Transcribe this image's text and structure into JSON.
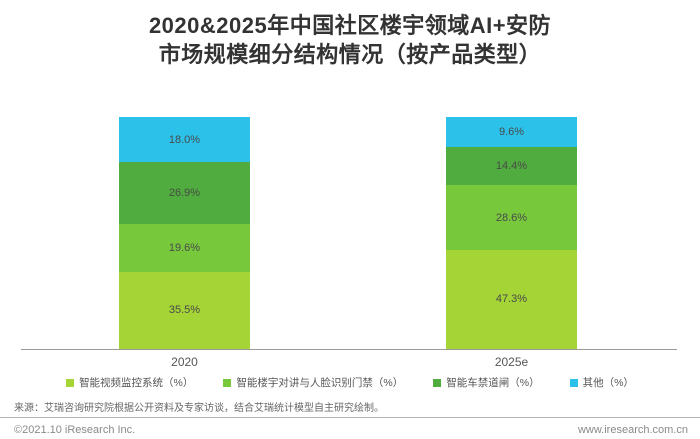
{
  "title": {
    "line1": "2020&2025年中国社区楼宇领域AI+安防",
    "line2": "市场规模细分结构情况（按产品类型）"
  },
  "chart_data": {
    "type": "bar",
    "stacked": true,
    "orientation": "vertical",
    "categories": [
      "2020",
      "2025e"
    ],
    "series": [
      {
        "name": "智能视频监控系统（%）",
        "color": "#A4D436",
        "values": [
          35.5,
          47.3
        ]
      },
      {
        "name": "智能楼宇对讲与人脸识别门禁（%）",
        "color": "#78C83C",
        "values": [
          19.6,
          28.6
        ]
      },
      {
        "name": "智能车禁道闸（%）",
        "color": "#50AC3E",
        "values": [
          26.9,
          14.4
        ]
      },
      {
        "name": "其他（%）",
        "color": "#2BC1E9",
        "values": [
          18.0,
          9.6
        ]
      }
    ],
    "data_labels": {
      "2020": [
        "35.5%",
        "19.6%",
        "26.9%",
        "18.0%"
      ],
      "2025e": [
        "47.3%",
        "28.6%",
        "14.4%",
        "9.6%"
      ]
    },
    "ylim": [
      0,
      100
    ],
    "grid": false,
    "legend_position": "bottom",
    "title": "2020&2025年中国社区楼宇领域AI+安防市场规模细分结构情况（按产品类型）"
  },
  "source_note": "来源：艾瑞咨询研究院根据公开资料及专家访谈，结合艾瑞统计模型自主研究绘制。",
  "footer": {
    "copyright": "©2021.10 iResearch Inc.",
    "website": "www.iresearch.com.cn"
  },
  "colors": {
    "title_text": "#333333",
    "data_label_text": "#4a4a4a",
    "axis_line": "#999999",
    "background": "#ffffff"
  }
}
